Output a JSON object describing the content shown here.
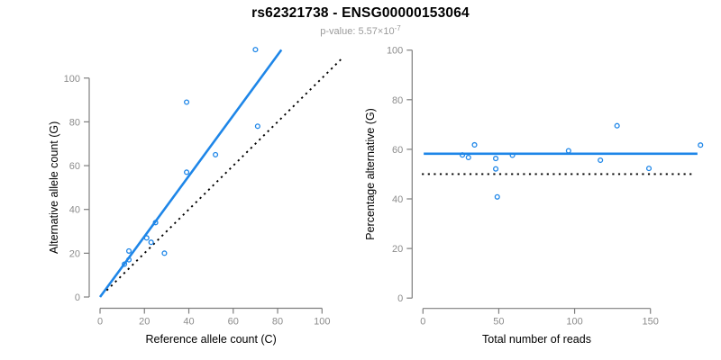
{
  "header": {
    "title": "rs62321738 - ENSG00000153064",
    "subtitle_prefix": "p-value: ",
    "p_value_coefficient": "5.57",
    "multiply_sign": "×",
    "base": "10",
    "exponent": "-7"
  },
  "colors": {
    "accent_blue": "#1E86E8",
    "dotted_black": "#000000",
    "axis_line": "#7E7E7E",
    "tick_label": "#8C8C8C",
    "axis_title": "#000000",
    "subtitle_gray": "#9B9B9B"
  },
  "chart_data": [
    {
      "type": "scatter",
      "name": "allele-counts-scatter",
      "xlabel": "Reference allele count (C)",
      "ylabel": "Alternative allele count (G)",
      "xticks": [
        0,
        20,
        40,
        60,
        80,
        100
      ],
      "yticks": [
        0,
        20,
        40,
        60,
        80,
        100
      ],
      "xlim": [
        0,
        110
      ],
      "ylim": [
        0,
        113
      ],
      "grid": false,
      "legend": "none",
      "points": [
        [
          11,
          15
        ],
        [
          13,
          17
        ],
        [
          13,
          21
        ],
        [
          21,
          27
        ],
        [
          23,
          25
        ],
        [
          25,
          34
        ],
        [
          29,
          20
        ],
        [
          39,
          57
        ],
        [
          39,
          89
        ],
        [
          52,
          65
        ],
        [
          70,
          113
        ],
        [
          71,
          78
        ]
      ],
      "lines": [
        {
          "name": "regression-line",
          "color_key": "accent_blue",
          "dashed": false,
          "x1": 0,
          "y1": 0,
          "x2": 81.7,
          "y2": 112.9
        },
        {
          "name": "identity-line",
          "color_key": "dotted_black",
          "dashed": true,
          "x1": 3,
          "y1": 3,
          "x2": 108.5,
          "y2": 108.5
        }
      ]
    },
    {
      "type": "scatter",
      "name": "percentage-vs-reads-scatter",
      "xlabel": "Total number of reads",
      "ylabel": "Percentage alternative (G)",
      "xticks": [
        0,
        50,
        100,
        150
      ],
      "yticks": [
        0,
        20,
        40,
        60,
        80,
        100
      ],
      "xlim": [
        0,
        183
      ],
      "ylim": [
        0,
        100
      ],
      "grid": false,
      "legend": "none",
      "points": [
        [
          26,
          57.7
        ],
        [
          30,
          56.7
        ],
        [
          34,
          61.8
        ],
        [
          48,
          56.3
        ],
        [
          48,
          52.1
        ],
        [
          49,
          40.8
        ],
        [
          59,
          57.6
        ],
        [
          96,
          59.4
        ],
        [
          117,
          55.6
        ],
        [
          128,
          69.5
        ],
        [
          149,
          52.3
        ],
        [
          183,
          61.7
        ]
      ],
      "lines": [
        {
          "name": "mean-percentage-line",
          "color_key": "accent_blue",
          "dashed": false,
          "x1": 0.5,
          "y1": 58.2,
          "x2": 181,
          "y2": 58.2
        },
        {
          "name": "fifty-percent-line",
          "color_key": "dotted_black",
          "dashed": true,
          "x1": -0.7,
          "y1": 50,
          "x2": 178.5,
          "y2": 50
        }
      ]
    }
  ]
}
